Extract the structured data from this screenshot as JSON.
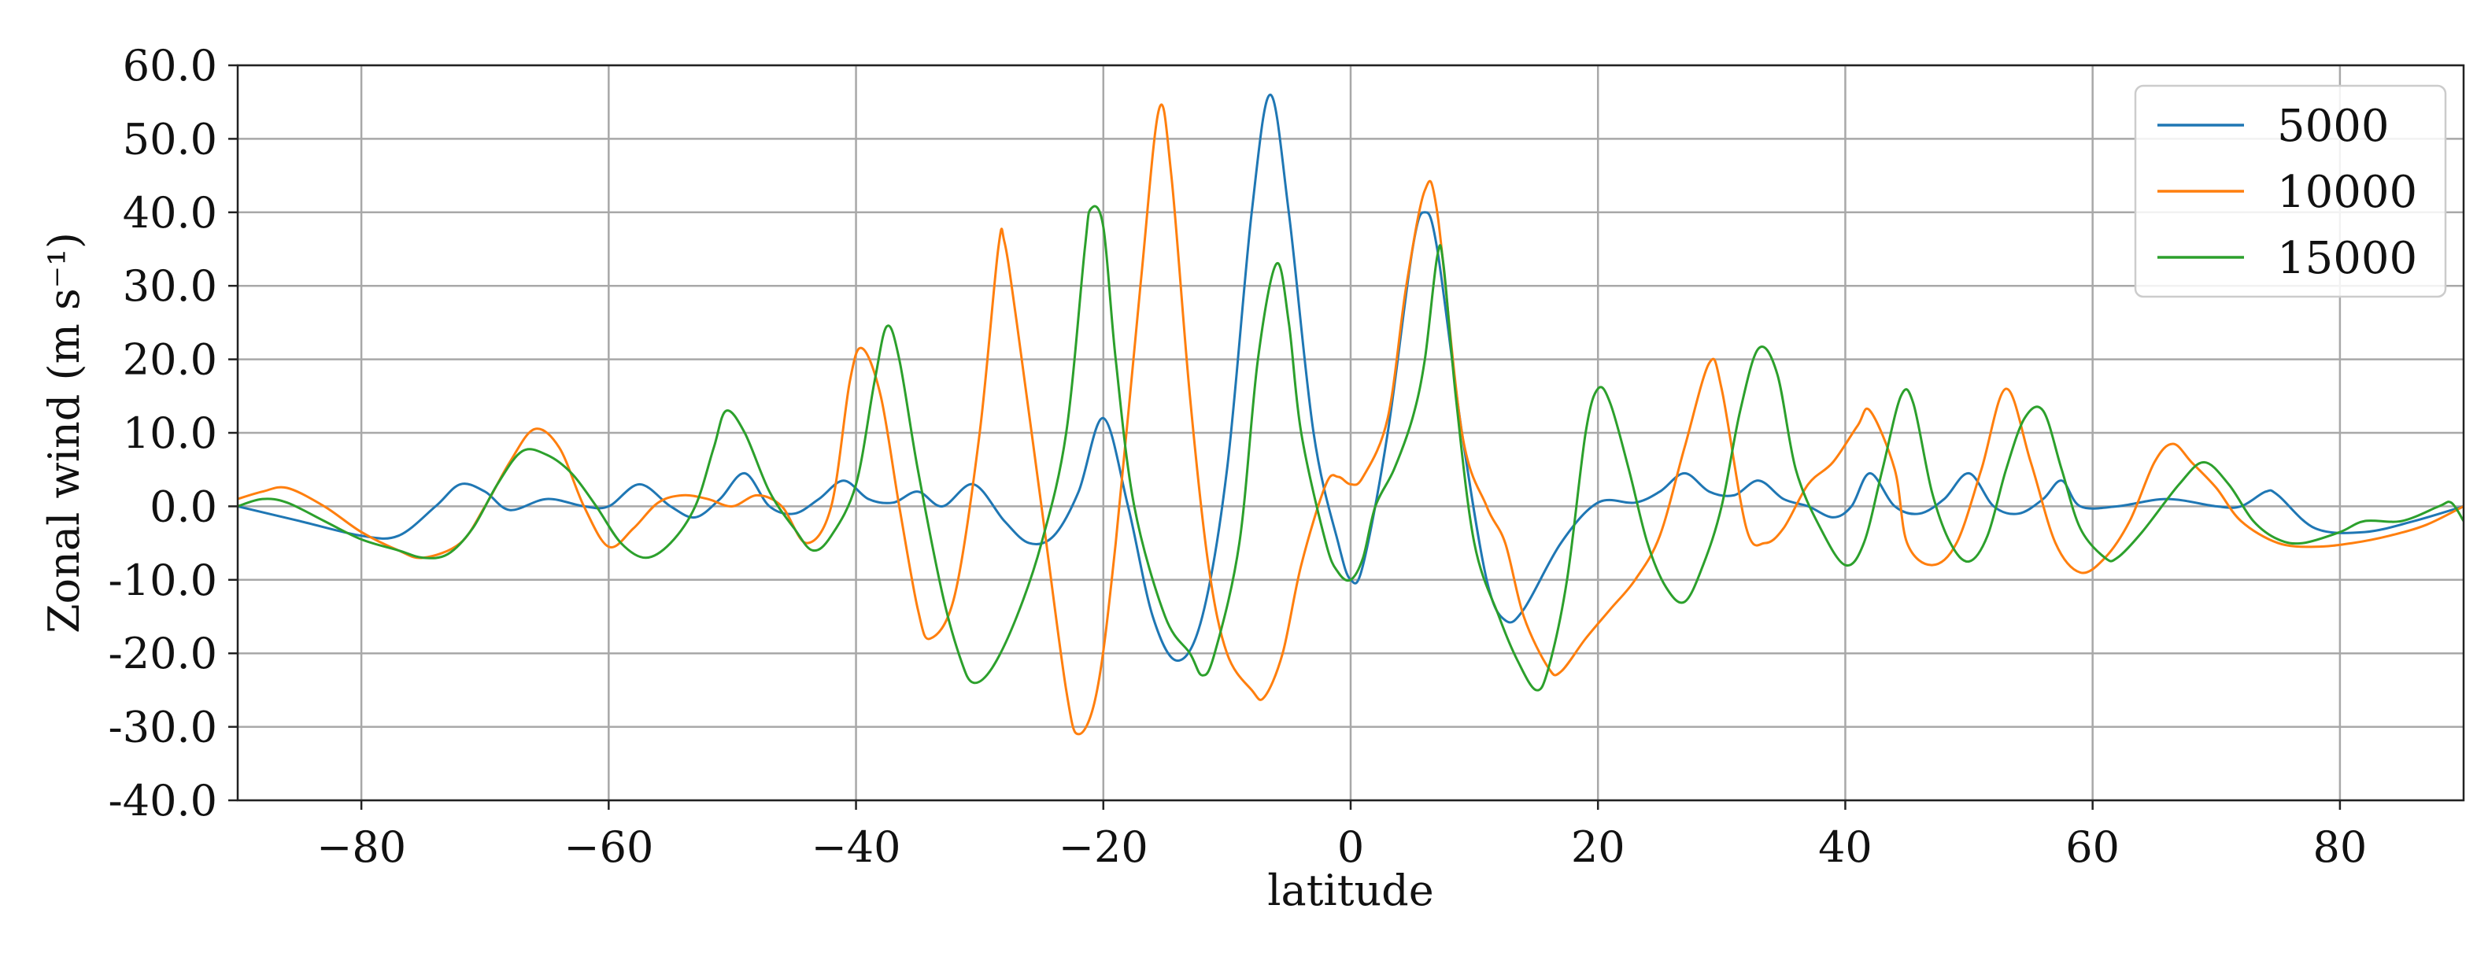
{
  "chart_data": {
    "type": "line",
    "title": "",
    "xlabel": "latitude",
    "ylabel": "Zonal wind (m s⁻¹)",
    "xlim": [
      -90,
      90
    ],
    "ylim": [
      -40,
      60
    ],
    "xticks": [
      -80,
      -60,
      -40,
      -20,
      0,
      20,
      40,
      60,
      80
    ],
    "xtick_labels": [
      "−80",
      "−60",
      "−40",
      "−20",
      "0",
      "20",
      "40",
      "60",
      "80"
    ],
    "yticks": [
      -40,
      -30,
      -20,
      -10,
      0,
      10,
      20,
      30,
      40,
      50,
      60
    ],
    "ytick_labels": [
      "-40.0",
      "-30.0",
      "-20.0",
      "-10.0",
      "0.0",
      "10.0",
      "20.0",
      "30.0",
      "40.0",
      "50.0",
      "60.0"
    ],
    "grid": true,
    "legend_position": "top-right",
    "series": [
      {
        "name": "5000",
        "color": "#1f77b4",
        "points": [
          [
            -90,
            0
          ],
          [
            -85,
            -2
          ],
          [
            -80,
            -4
          ],
          [
            -77,
            -4
          ],
          [
            -74,
            0
          ],
          [
            -72,
            3
          ],
          [
            -70,
            2
          ],
          [
            -68,
            -0.5
          ],
          [
            -65,
            1
          ],
          [
            -62,
            0
          ],
          [
            -60,
            0
          ],
          [
            -57.5,
            3
          ],
          [
            -55,
            0
          ],
          [
            -53,
            -1.5
          ],
          [
            -51,
            1
          ],
          [
            -49,
            4.5
          ],
          [
            -47,
            0
          ],
          [
            -45,
            -1
          ],
          [
            -43,
            1
          ],
          [
            -41,
            3.5
          ],
          [
            -39,
            1
          ],
          [
            -37,
            0.5
          ],
          [
            -35,
            2
          ],
          [
            -33,
            0
          ],
          [
            -30.5,
            3
          ],
          [
            -28,
            -2
          ],
          [
            -26,
            -5
          ],
          [
            -24,
            -4
          ],
          [
            -22,
            2
          ],
          [
            -20,
            12
          ],
          [
            -18,
            0
          ],
          [
            -16,
            -15
          ],
          [
            -14,
            -21
          ],
          [
            -12,
            -15
          ],
          [
            -10,
            5
          ],
          [
            -8,
            40
          ],
          [
            -6.5,
            56
          ],
          [
            -5,
            40
          ],
          [
            -3,
            10
          ],
          [
            -1,
            -5
          ],
          [
            0,
            -10
          ],
          [
            1,
            -8
          ],
          [
            3,
            10
          ],
          [
            5,
            35
          ],
          [
            6,
            40
          ],
          [
            7,
            35
          ],
          [
            9,
            10
          ],
          [
            11,
            -10
          ],
          [
            12.5,
            -15.5
          ],
          [
            14,
            -14
          ],
          [
            17,
            -5
          ],
          [
            20,
            0.5
          ],
          [
            23,
            0.5
          ],
          [
            25,
            2
          ],
          [
            27,
            4.5
          ],
          [
            29,
            2
          ],
          [
            31,
            1.5
          ],
          [
            33,
            3.5
          ],
          [
            35,
            1
          ],
          [
            37,
            0
          ],
          [
            39,
            -1.5
          ],
          [
            40.5,
            0
          ],
          [
            42,
            4.5
          ],
          [
            44,
            0
          ],
          [
            46,
            -1
          ],
          [
            48,
            1
          ],
          [
            50,
            4.5
          ],
          [
            52,
            0
          ],
          [
            54,
            -1
          ],
          [
            56,
            1
          ],
          [
            57.5,
            3.5
          ],
          [
            59,
            0
          ],
          [
            62,
            0
          ],
          [
            66,
            1
          ],
          [
            70,
            0
          ],
          [
            72,
            0
          ],
          [
            74,
            2
          ],
          [
            75,
            1.5
          ],
          [
            78,
            -3
          ],
          [
            82,
            -3.5
          ],
          [
            86,
            -2
          ],
          [
            90,
            0
          ]
        ]
      },
      {
        "name": "10000",
        "color": "#ff7f0e",
        "points": [
          [
            -90,
            1
          ],
          [
            -88,
            2
          ],
          [
            -86,
            2.5
          ],
          [
            -83,
            0
          ],
          [
            -80,
            -3.5
          ],
          [
            -77,
            -6
          ],
          [
            -75,
            -7
          ],
          [
            -72,
            -5
          ],
          [
            -70,
            0
          ],
          [
            -68,
            6
          ],
          [
            -66,
            10.5
          ],
          [
            -64,
            8
          ],
          [
            -62,
            0
          ],
          [
            -60,
            -5.5
          ],
          [
            -58,
            -3
          ],
          [
            -56,
            0.5
          ],
          [
            -54,
            1.5
          ],
          [
            -52,
            1
          ],
          [
            -50,
            0
          ],
          [
            -48,
            1.5
          ],
          [
            -46,
            0
          ],
          [
            -44,
            -5
          ],
          [
            -42,
            0
          ],
          [
            -40.5,
            17
          ],
          [
            -39.5,
            21.5
          ],
          [
            -38,
            15
          ],
          [
            -36.5,
            0
          ],
          [
            -35,
            -14
          ],
          [
            -34,
            -18
          ],
          [
            -32,
            -12
          ],
          [
            -30,
            10
          ],
          [
            -28.5,
            35
          ],
          [
            -28,
            36
          ],
          [
            -27,
            25
          ],
          [
            -25,
            0
          ],
          [
            -23,
            -25
          ],
          [
            -22,
            -31
          ],
          [
            -20.5,
            -25
          ],
          [
            -19,
            -5
          ],
          [
            -17,
            30
          ],
          [
            -15.5,
            54
          ],
          [
            -14.5,
            45
          ],
          [
            -13,
            15
          ],
          [
            -11.5,
            -8
          ],
          [
            -10,
            -20
          ],
          [
            -8,
            -25
          ],
          [
            -7,
            -26
          ],
          [
            -5.5,
            -20
          ],
          [
            -4,
            -8
          ],
          [
            -2,
            3
          ],
          [
            -1,
            4
          ],
          [
            0,
            3
          ],
          [
            1,
            4
          ],
          [
            3,
            12
          ],
          [
            4.5,
            30
          ],
          [
            6,
            43
          ],
          [
            7,
            40
          ],
          [
            9,
            10
          ],
          [
            11,
            0
          ],
          [
            12.5,
            -5
          ],
          [
            14,
            -15
          ],
          [
            16,
            -22
          ],
          [
            17,
            -22.5
          ],
          [
            19,
            -18
          ],
          [
            21,
            -14
          ],
          [
            23,
            -10
          ],
          [
            25,
            -4
          ],
          [
            27,
            8
          ],
          [
            29,
            19.5
          ],
          [
            30,
            16
          ],
          [
            32,
            -3
          ],
          [
            33.5,
            -5
          ],
          [
            35,
            -3
          ],
          [
            37,
            3
          ],
          [
            39,
            6
          ],
          [
            41,
            11
          ],
          [
            42,
            13
          ],
          [
            44,
            5
          ],
          [
            45,
            -5
          ],
          [
            47,
            -8
          ],
          [
            49,
            -5
          ],
          [
            51,
            5
          ],
          [
            53,
            16
          ],
          [
            55,
            6
          ],
          [
            57,
            -5
          ],
          [
            59,
            -9
          ],
          [
            61,
            -7
          ],
          [
            63,
            -2
          ],
          [
            65,
            6
          ],
          [
            66.5,
            8.5
          ],
          [
            68,
            6
          ],
          [
            70,
            2.5
          ],
          [
            72,
            -2
          ],
          [
            75,
            -5
          ],
          [
            78,
            -5.5
          ],
          [
            81,
            -5
          ],
          [
            84,
            -4
          ],
          [
            87,
            -2.5
          ],
          [
            90,
            0
          ]
        ]
      },
      {
        "name": "15000",
        "color": "#2ca02c",
        "points": [
          [
            -90,
            0
          ],
          [
            -88,
            1
          ],
          [
            -86,
            0.5
          ],
          [
            -83,
            -2
          ],
          [
            -80,
            -4.5
          ],
          [
            -77,
            -6
          ],
          [
            -75,
            -7
          ],
          [
            -73,
            -6.5
          ],
          [
            -71,
            -3
          ],
          [
            -69,
            3
          ],
          [
            -67,
            7.5
          ],
          [
            -65,
            7
          ],
          [
            -63,
            4.5
          ],
          [
            -61,
            0
          ],
          [
            -59,
            -5
          ],
          [
            -57,
            -7
          ],
          [
            -55,
            -5
          ],
          [
            -53,
            0
          ],
          [
            -51.5,
            8
          ],
          [
            -50.5,
            13
          ],
          [
            -49,
            10
          ],
          [
            -47,
            2
          ],
          [
            -45,
            -3
          ],
          [
            -43.5,
            -6
          ],
          [
            -42,
            -4
          ],
          [
            -40,
            3
          ],
          [
            -38.5,
            17
          ],
          [
            -37.5,
            24.5
          ],
          [
            -36.5,
            20
          ],
          [
            -35,
            5
          ],
          [
            -33,
            -12
          ],
          [
            -31.5,
            -21
          ],
          [
            -30.5,
            -24
          ],
          [
            -29,
            -22
          ],
          [
            -27,
            -15
          ],
          [
            -25,
            -5
          ],
          [
            -23,
            10
          ],
          [
            -21.5,
            35
          ],
          [
            -21,
            40.5
          ],
          [
            -20,
            38
          ],
          [
            -19,
            20
          ],
          [
            -17.5,
            0
          ],
          [
            -15,
            -15
          ],
          [
            -13,
            -20
          ],
          [
            -12,
            -23
          ],
          [
            -11,
            -20
          ],
          [
            -9,
            -5
          ],
          [
            -7.5,
            20
          ],
          [
            -6,
            33
          ],
          [
            -5,
            25
          ],
          [
            -4,
            10
          ],
          [
            -2,
            -5
          ],
          [
            -1,
            -9
          ],
          [
            0,
            -10
          ],
          [
            1,
            -7
          ],
          [
            2,
            0
          ],
          [
            3.5,
            5
          ],
          [
            5,
            12
          ],
          [
            6,
            20
          ],
          [
            7,
            34
          ],
          [
            7.5,
            33
          ],
          [
            8.5,
            15
          ],
          [
            10,
            -5
          ],
          [
            12,
            -15
          ],
          [
            13.5,
            -21
          ],
          [
            15,
            -25
          ],
          [
            16,
            -22
          ],
          [
            17.5,
            -10
          ],
          [
            19,
            10
          ],
          [
            20,
            16
          ],
          [
            21,
            14
          ],
          [
            22.5,
            5
          ],
          [
            24,
            -5
          ],
          [
            25.5,
            -11
          ],
          [
            27,
            -13
          ],
          [
            28.5,
            -8
          ],
          [
            30,
            0
          ],
          [
            31.5,
            13
          ],
          [
            33,
            21.5
          ],
          [
            34.5,
            18
          ],
          [
            36,
            5
          ],
          [
            38,
            -3
          ],
          [
            40,
            -8
          ],
          [
            41.5,
            -5
          ],
          [
            43,
            5
          ],
          [
            44.5,
            15
          ],
          [
            45.5,
            14
          ],
          [
            47,
            2
          ],
          [
            48.5,
            -5
          ],
          [
            50,
            -7.5
          ],
          [
            51.5,
            -4
          ],
          [
            53,
            5
          ],
          [
            54.5,
            12
          ],
          [
            56,
            13
          ],
          [
            57.5,
            5
          ],
          [
            59,
            -3
          ],
          [
            61,
            -7
          ],
          [
            62,
            -7
          ],
          [
            64,
            -3.5
          ],
          [
            67,
            3
          ],
          [
            69,
            6
          ],
          [
            71,
            3
          ],
          [
            73,
            -2
          ],
          [
            75,
            -4.5
          ],
          [
            77,
            -5
          ],
          [
            80,
            -3.5
          ],
          [
            82,
            -2
          ],
          [
            85,
            -2
          ],
          [
            88,
            0
          ],
          [
            89,
            0.5
          ],
          [
            90,
            -2
          ]
        ]
      }
    ]
  }
}
